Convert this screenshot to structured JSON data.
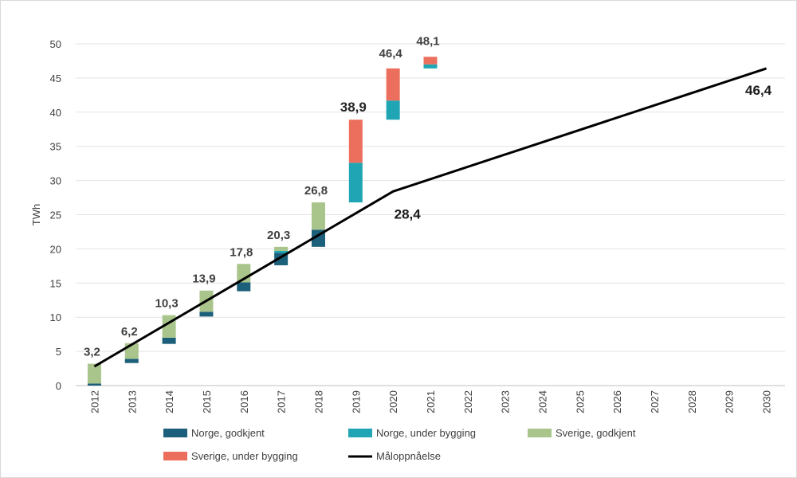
{
  "chart_data": {
    "type": "bar",
    "stacked": true,
    "ylabel": "TWh",
    "ylim": [
      0,
      50
    ],
    "yticks": [
      0,
      5,
      10,
      15,
      20,
      25,
      30,
      35,
      40,
      45,
      50
    ],
    "categories": [
      "2012",
      "2013",
      "2014",
      "2015",
      "2016",
      "2017",
      "2018",
      "2019",
      "2020",
      "2021",
      "2022",
      "2023",
      "2024",
      "2025",
      "2026",
      "2027",
      "2028",
      "2029",
      "2030"
    ],
    "series": [
      {
        "name": "Norge, godkjent",
        "color": "#1b5f7a",
        "ranges": [
          [
            0,
            0.3
          ],
          [
            3.3,
            3.9
          ],
          [
            6.1,
            7.0
          ],
          [
            10.1,
            10.8
          ],
          [
            13.8,
            15.1
          ],
          [
            17.6,
            19.4
          ],
          [
            20.3,
            22.8
          ],
          null,
          null,
          null,
          null,
          null,
          null,
          null,
          null,
          null,
          null,
          null,
          null
        ]
      },
      {
        "name": "Norge, under bygging",
        "color": "#1fa5b3",
        "ranges": [
          null,
          null,
          null,
          null,
          null,
          [
            19.4,
            19.7
          ],
          null,
          [
            26.8,
            32.6
          ],
          [
            38.9,
            41.7
          ],
          [
            46.4,
            47.0
          ],
          null,
          null,
          null,
          null,
          null,
          null,
          null,
          null,
          null
        ]
      },
      {
        "name": "Sverige, godkjent",
        "color": "#a9c58c",
        "ranges": [
          [
            0.3,
            3.2
          ],
          [
            3.9,
            6.2
          ],
          [
            7.0,
            10.3
          ],
          [
            10.8,
            13.9
          ],
          [
            15.1,
            17.8
          ],
          [
            19.7,
            20.3
          ],
          [
            22.8,
            26.8
          ],
          null,
          null,
          null,
          null,
          null,
          null,
          null,
          null,
          null,
          null,
          null,
          null
        ]
      },
      {
        "name": "Sverige, under bygging",
        "color": "#ec6f5e",
        "ranges": [
          null,
          null,
          null,
          null,
          null,
          null,
          null,
          [
            32.6,
            38.9
          ],
          [
            41.7,
            46.4
          ],
          [
            47.0,
            48.1
          ],
          null,
          null,
          null,
          null,
          null,
          null,
          null,
          null,
          null
        ]
      }
    ],
    "totals": [
      {
        "category": "2012",
        "label": "3,2",
        "value": 3.2,
        "bold": false
      },
      {
        "category": "2013",
        "label": "6,2",
        "value": 6.2,
        "bold": false
      },
      {
        "category": "2014",
        "label": "10,3",
        "value": 10.3,
        "bold": false
      },
      {
        "category": "2015",
        "label": "13,9",
        "value": 13.9,
        "bold": false
      },
      {
        "category": "2016",
        "label": "17,8",
        "value": 17.8,
        "bold": false
      },
      {
        "category": "2017",
        "label": "20,3",
        "value": 20.3,
        "bold": false
      },
      {
        "category": "2018",
        "label": "26,8",
        "value": 26.8,
        "bold": false
      },
      {
        "category": "2019",
        "label": "38,9",
        "value": 38.9,
        "bold": true
      },
      {
        "category": "2020",
        "label": "46,4",
        "value": 46.4,
        "bold": false
      },
      {
        "category": "2021",
        "label": "48,1",
        "value": 48.1,
        "bold": false
      }
    ],
    "target_line": {
      "name": "Måloppnåelse",
      "color": "#000000",
      "x": [
        "2012",
        "2020",
        "2030"
      ],
      "y": [
        2.8,
        28.4,
        46.4
      ],
      "labels": [
        {
          "category": "2020",
          "text": "28,4"
        },
        {
          "category": "2030",
          "text": "46,4"
        }
      ]
    },
    "legend": [
      {
        "name": "Norge, godkjent",
        "color": "#1b5f7a",
        "kind": "box"
      },
      {
        "name": "Norge, under bygging",
        "color": "#1fa5b3",
        "kind": "box"
      },
      {
        "name": "Sverige, godkjent",
        "color": "#a9c58c",
        "kind": "box"
      },
      {
        "name": "Sverige, under bygging",
        "color": "#ec6f5e",
        "kind": "box"
      },
      {
        "name": "Måloppnåelse",
        "color": "#000000",
        "kind": "line"
      }
    ],
    "grid": true,
    "legend_position": "bottom"
  }
}
